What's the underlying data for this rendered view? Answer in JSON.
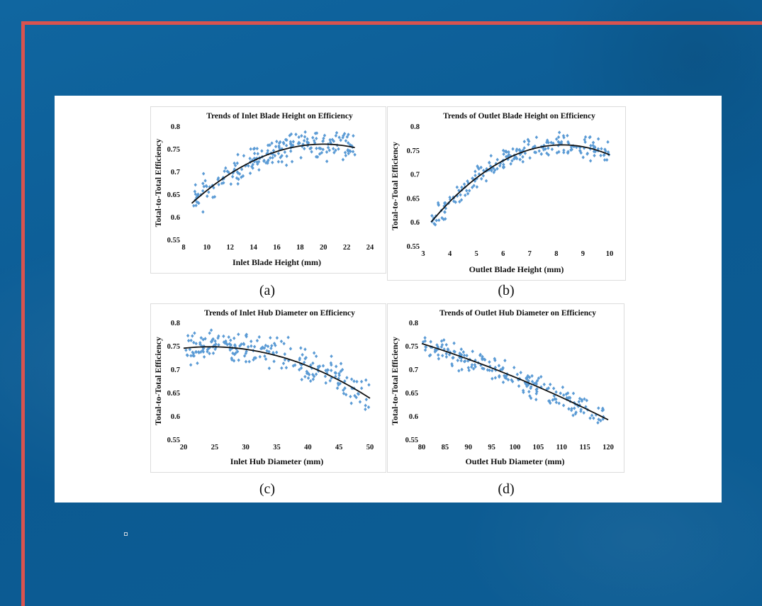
{
  "colors": {
    "background": "#0e5f97",
    "frame": "#d9534f",
    "points": "#5b9bd5",
    "trend": "#111111"
  },
  "captions": [
    "(a)",
    "(b)",
    "(c)",
    "(d)"
  ],
  "chart_data": [
    {
      "id": "a",
      "type": "scatter",
      "title": "Trends of Inlet Blade Height on Efficiency",
      "xlabel": "Inlet Blade Height (mm)",
      "ylabel": "Total-to-Total Efficiency",
      "xlim": [
        8,
        24
      ],
      "ylim": [
        0.55,
        0.8
      ],
      "xticks": [
        8,
        10,
        12,
        14,
        16,
        18,
        20,
        22,
        24
      ],
      "xtick_labels": [
        "8",
        "10",
        "12",
        "14",
        "16",
        "18",
        "20",
        "22",
        "24"
      ],
      "yticks": [
        0.55,
        0.6,
        0.65,
        0.7,
        0.75,
        0.8
      ],
      "ytick_labels": [
        "0.55",
        "0.6",
        "0.65",
        "0.7",
        "0.75",
        "0.8"
      ],
      "trend": {
        "form": "quadratic",
        "x_start": 8.7,
        "x_end": 22.7,
        "points": [
          [
            8.7,
            0.63
          ],
          [
            15,
            0.735
          ],
          [
            20.5,
            0.76
          ]
        ]
      },
      "scatter": {
        "n": 220,
        "x_range": [
          8.7,
          22.7
        ],
        "spread": 0.045,
        "seed": 11
      }
    },
    {
      "id": "b",
      "type": "scatter",
      "title": "Trends of Outlet Blade Height on Efficiency",
      "xlabel": "Outlet Blade Height (mm)",
      "ylabel": "Total-to-Total Efficiency",
      "xlim": [
        3,
        10
      ],
      "ylim": [
        0.55,
        0.8
      ],
      "xticks": [
        3,
        4,
        5,
        6,
        7,
        8,
        9,
        10
      ],
      "xtick_labels": [
        "3",
        "4",
        "5",
        "6",
        "7",
        "8",
        "9",
        "10"
      ],
      "yticks": [
        0.55,
        0.6,
        0.65,
        0.7,
        0.75,
        0.8
      ],
      "ytick_labels": [
        "0.55",
        "0.6",
        "0.65",
        "0.7",
        "0.75",
        "0.8"
      ],
      "trend": {
        "form": "quadratic",
        "x_start": 3.3,
        "x_end": 10,
        "points": [
          [
            3.3,
            0.6
          ],
          [
            6,
            0.728
          ],
          [
            8.6,
            0.76
          ]
        ]
      },
      "scatter": {
        "n": 220,
        "x_range": [
          3.3,
          10
        ],
        "spread": 0.035,
        "seed": 23
      }
    },
    {
      "id": "c",
      "type": "scatter",
      "title": "Trends of Inlet Hub Diameter on Efficiency",
      "xlabel": "Inlet Hub Diameter (mm)",
      "ylabel": "Total-to-Total Efficiency",
      "xlim": [
        20,
        50
      ],
      "ylim": [
        0.55,
        0.8
      ],
      "xticks": [
        20,
        25,
        30,
        35,
        40,
        45,
        50
      ],
      "xtick_labels": [
        "20",
        "25",
        "30",
        "35",
        "40",
        "45",
        "50"
      ],
      "yticks": [
        0.55,
        0.6,
        0.65,
        0.7,
        0.75,
        0.8
      ],
      "ytick_labels": [
        "0.55",
        "0.6",
        "0.65",
        "0.7",
        "0.75",
        "0.8"
      ],
      "trend": {
        "form": "quadratic",
        "x_start": 20,
        "x_end": 50,
        "points": [
          [
            20,
            0.745
          ],
          [
            25,
            0.748
          ],
          [
            50,
            0.638
          ]
        ]
      },
      "scatter": {
        "n": 230,
        "x_range": [
          20.3,
          50
        ],
        "spread": 0.05,
        "seed": 37
      }
    },
    {
      "id": "d",
      "type": "scatter",
      "title": "Trends of Outlet Hub Diameter on Efficiency",
      "xlabel": "Outlet Hub Diameter (mm)",
      "ylabel": "Total-to-Total Efficiency",
      "xlim": [
        80,
        120
      ],
      "ylim": [
        0.55,
        0.8
      ],
      "xticks": [
        80,
        85,
        90,
        95,
        100,
        105,
        110,
        115,
        120
      ],
      "xtick_labels": [
        "80",
        "85",
        "90",
        "95",
        "100",
        "105",
        "110",
        "115",
        "120"
      ],
      "yticks": [
        0.55,
        0.6,
        0.65,
        0.7,
        0.75,
        0.8
      ],
      "ytick_labels": [
        "0.55",
        "0.6",
        "0.65",
        "0.7",
        "0.75",
        "0.8"
      ],
      "trend": {
        "form": "quadratic",
        "x_start": 80,
        "x_end": 120,
        "points": [
          [
            80,
            0.755
          ],
          [
            100,
            0.683
          ],
          [
            120,
            0.592
          ]
        ]
      },
      "scatter": {
        "n": 210,
        "x_range": [
          80,
          119
        ],
        "spread": 0.04,
        "seed": 53
      }
    }
  ]
}
